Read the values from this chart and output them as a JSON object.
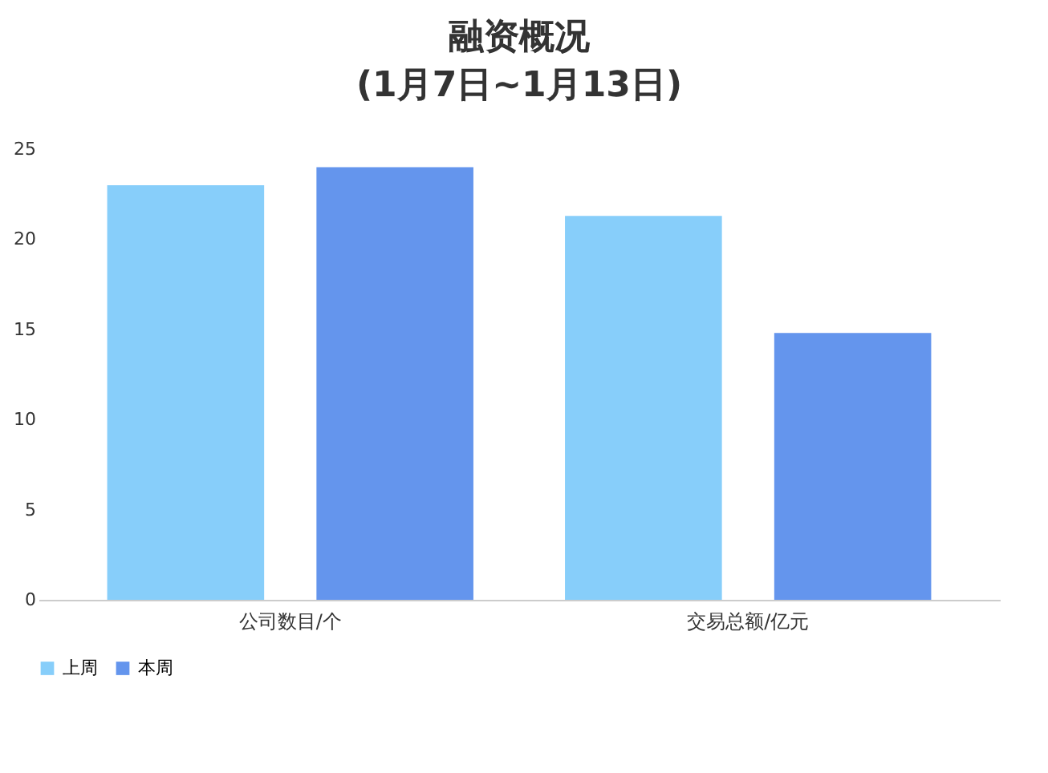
{
  "chart_data": {
    "type": "bar",
    "title": "融资概况\n(1月7日~1月13日)",
    "categories": [
      "公司数目/个",
      "交易总额/亿元"
    ],
    "series": [
      {
        "name": "上周",
        "color": "#87cefa",
        "values": [
          23,
          21.3
        ]
      },
      {
        "name": "本周",
        "color": "#6495ed",
        "values": [
          24,
          14.8
        ]
      }
    ],
    "ylim": [
      0,
      25
    ],
    "yticks": [
      0,
      5,
      10,
      15,
      20,
      25
    ],
    "grid": false,
    "legend": "bottom"
  }
}
